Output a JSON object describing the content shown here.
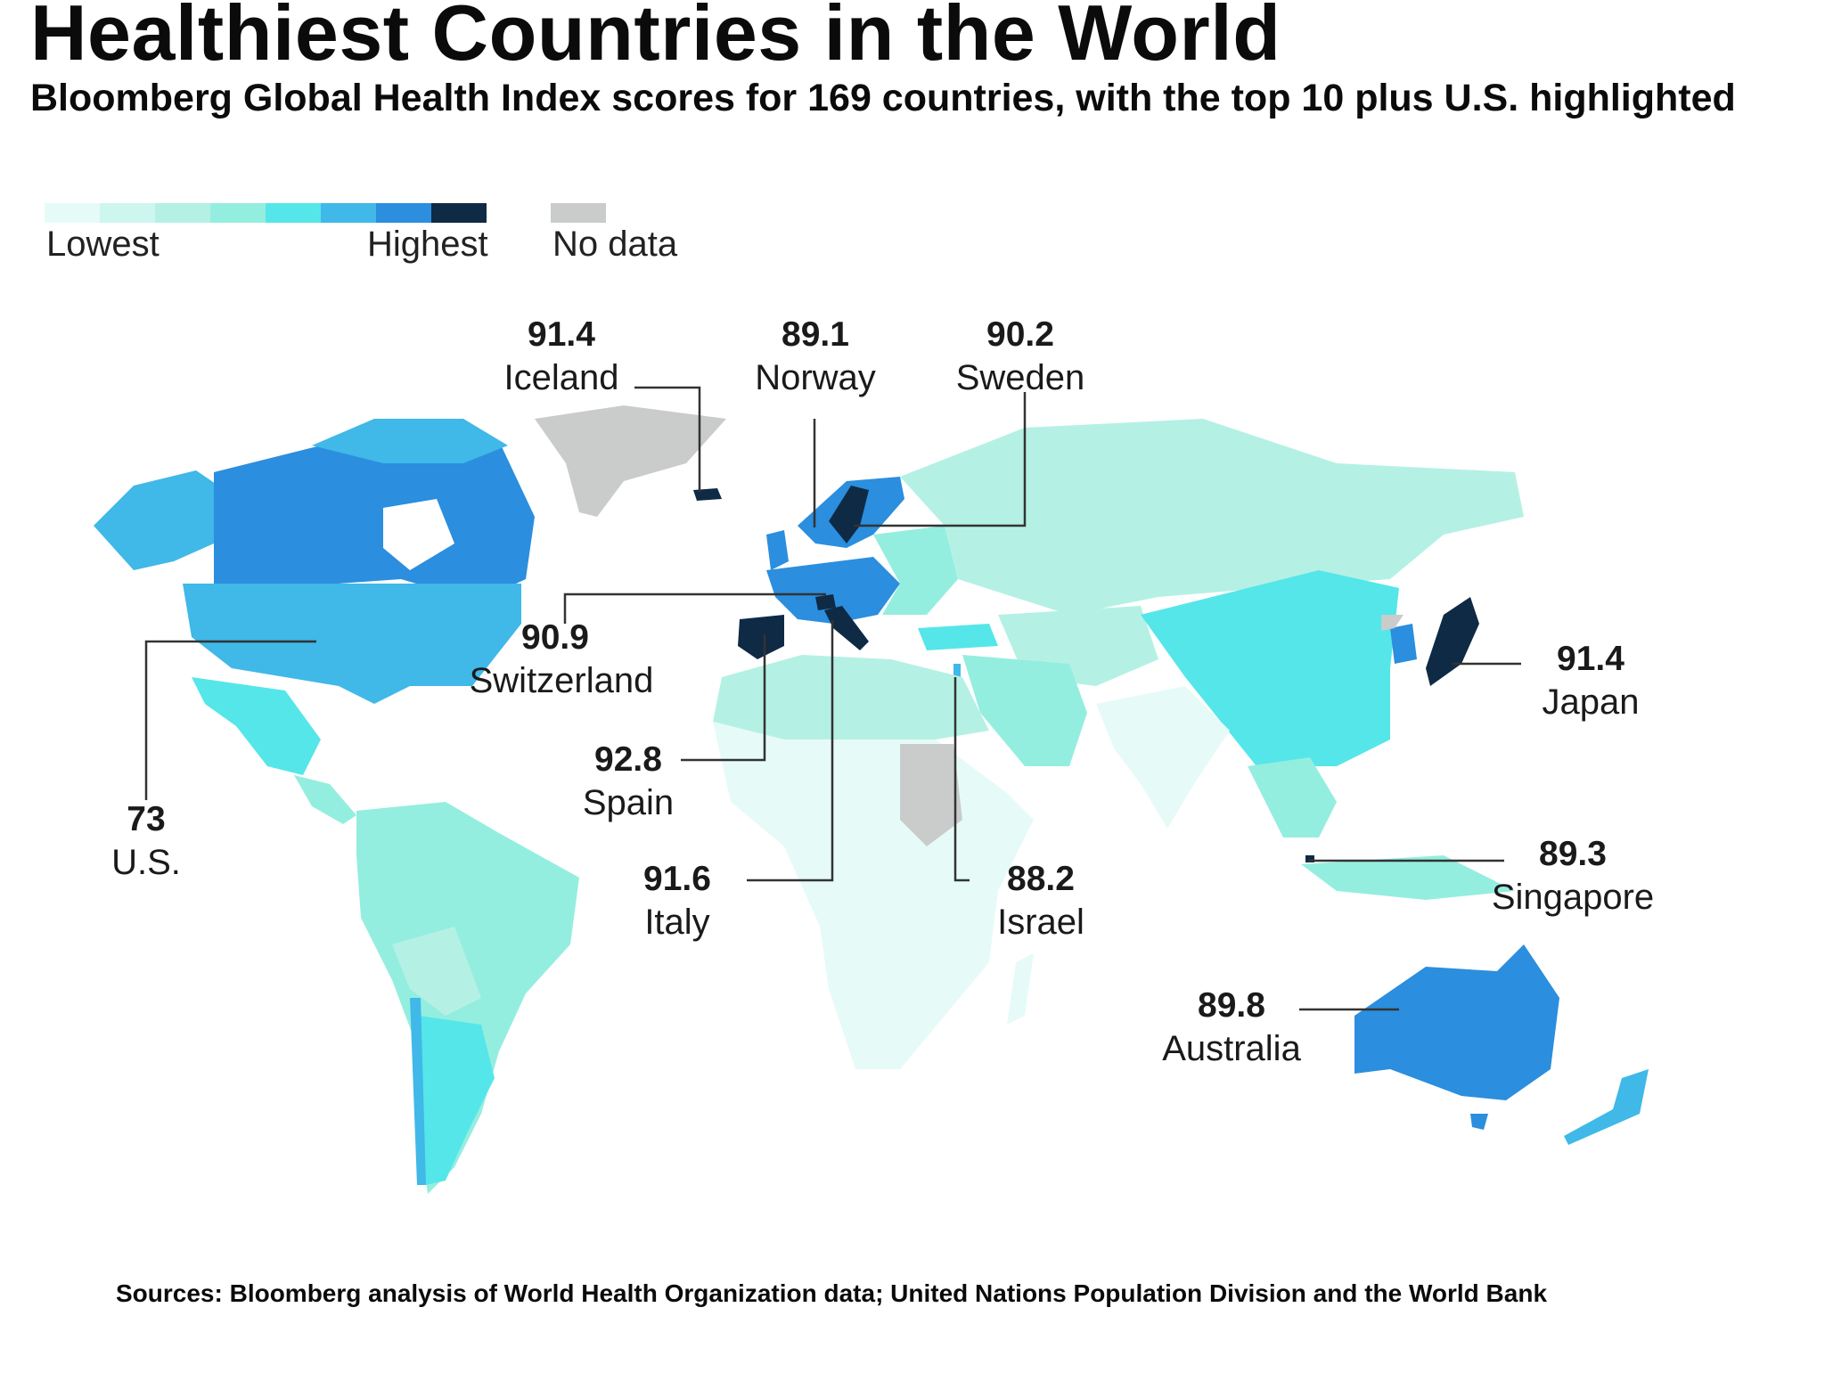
{
  "title": "Healthiest Countries in the World",
  "subtitle": "Bloomberg Global Health Index scores for 169 countries, with the top 10 plus U.S. highlighted",
  "legend": {
    "low_label": "Lowest",
    "high_label": "Highest",
    "nodata_label": "No data",
    "scale_colors": [
      "#e6fbf7",
      "#cdf6ee",
      "#b4f1e4",
      "#94eedf",
      "#55e6e9",
      "#40b8e8",
      "#2b8ede",
      "#0f2a45"
    ],
    "nodata_color": "#c9cccb"
  },
  "callouts": [
    {
      "name": "Iceland",
      "value": "91.4"
    },
    {
      "name": "Norway",
      "value": "89.1"
    },
    {
      "name": "Sweden",
      "value": "90.2"
    },
    {
      "name": "Switzerland",
      "value": "90.9"
    },
    {
      "name": "Spain",
      "value": "92.8"
    },
    {
      "name": "Italy",
      "value": "91.6"
    },
    {
      "name": "Israel",
      "value": "88.2"
    },
    {
      "name": "Japan",
      "value": "91.4"
    },
    {
      "name": "Singapore",
      "value": "89.3"
    },
    {
      "name": "Australia",
      "value": "89.8"
    },
    {
      "name": "U.S.",
      "value": "73"
    }
  ],
  "source": "Sources: Bloomberg analysis of World Health Organization data; United Nations Population Division and the World Bank"
}
